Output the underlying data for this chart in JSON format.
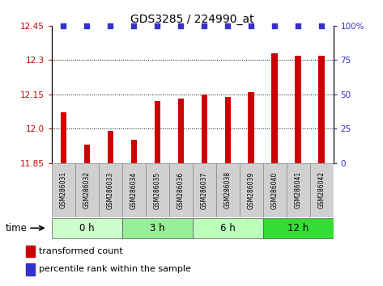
{
  "title": "GDS3285 / 224990_at",
  "samples": [
    "GSM286031",
    "GSM286032",
    "GSM286033",
    "GSM286034",
    "GSM286035",
    "GSM286036",
    "GSM286037",
    "GSM286038",
    "GSM286039",
    "GSM286040",
    "GSM286041",
    "GSM286042"
  ],
  "bar_values": [
    12.07,
    11.93,
    11.99,
    11.95,
    12.12,
    12.13,
    12.15,
    12.14,
    12.16,
    12.33,
    12.32,
    12.32
  ],
  "percentile_values": [
    100,
    100,
    100,
    100,
    100,
    100,
    100,
    100,
    100,
    100,
    100,
    100
  ],
  "bar_color": "#cc0000",
  "percentile_color": "#3333cc",
  "ylim_left": [
    11.85,
    12.45
  ],
  "ylim_right": [
    0,
    100
  ],
  "yticks_left": [
    11.85,
    12.0,
    12.15,
    12.3,
    12.45
  ],
  "yticks_right": [
    0,
    25,
    50,
    75,
    100
  ],
  "ytick_labels_right": [
    "0",
    "25",
    "50",
    "75",
    "100%"
  ],
  "groups": [
    {
      "label": "0 h",
      "start": 0,
      "end": 3,
      "color": "#ccffcc"
    },
    {
      "label": "3 h",
      "start": 3,
      "end": 6,
      "color": "#99ee99"
    },
    {
      "label": "6 h",
      "start": 6,
      "end": 9,
      "color": "#bbffbb"
    },
    {
      "label": "12 h",
      "start": 9,
      "end": 12,
      "color": "#33dd33"
    }
  ],
  "time_label": "time",
  "legend_red_label": "transformed count",
  "legend_blue_label": "percentile rank within the sample",
  "bg_color": "#ffffff",
  "tick_area_color": "#d0d0d0"
}
